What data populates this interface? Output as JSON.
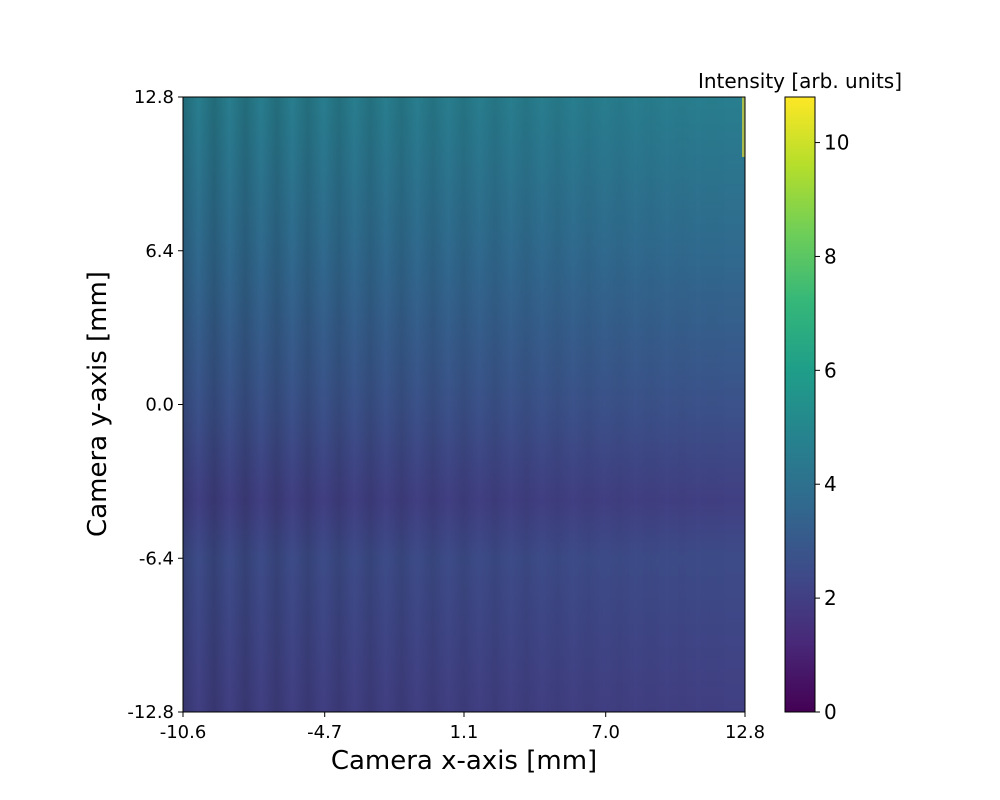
{
  "chart_data": {
    "type": "heatmap",
    "title": "",
    "xlabel": "Camera x-axis [mm]",
    "ylabel": "Camera y-axis [mm]",
    "xlim": [
      -10.6,
      12.8
    ],
    "ylim": [
      -12.8,
      12.8
    ],
    "x_ticks": [
      "-10.6",
      "-4.7",
      "1.1",
      "7.0",
      "12.8"
    ],
    "x_tick_values": [
      -10.6,
      -4.7,
      1.1,
      7.0,
      12.8
    ],
    "y_ticks": [
      "-12.8",
      "-6.4",
      "0.0",
      "6.4",
      "12.8"
    ],
    "y_tick_values": [
      -12.8,
      -6.4,
      0.0,
      6.4,
      12.8
    ],
    "colormap": "viridis",
    "colorbar": {
      "label": "Intensity [arb. units]",
      "range": [
        0,
        10.8
      ],
      "ticks": [
        "0",
        "2",
        "4",
        "6",
        "8",
        "10"
      ],
      "tick_values": [
        0,
        2,
        4,
        6,
        8,
        10
      ]
    },
    "intensity_profile_along_y": [
      {
        "y": 12.8,
        "value": 4.6
      },
      {
        "y": 6.4,
        "value": 3.7
      },
      {
        "y": 0.0,
        "value": 2.7
      },
      {
        "y": -4.0,
        "value": 2.0
      },
      {
        "y": -6.4,
        "value": 2.5
      },
      {
        "y": -12.8,
        "value": 2.0
      }
    ],
    "fringe_count": 18
  }
}
